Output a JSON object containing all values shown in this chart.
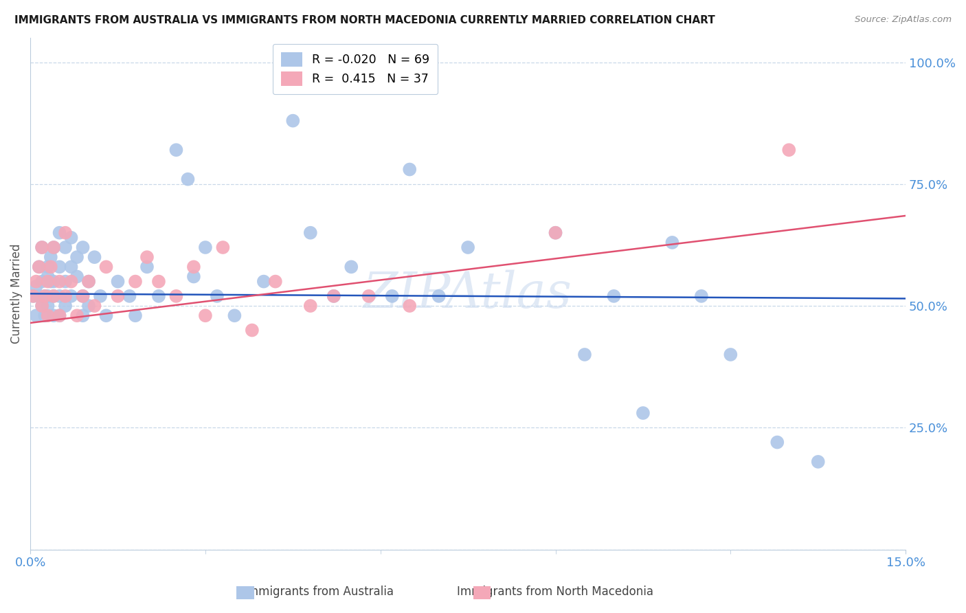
{
  "title": "IMMIGRANTS FROM AUSTRALIA VS IMMIGRANTS FROM NORTH MACEDONIA CURRENTLY MARRIED CORRELATION CHART",
  "source": "Source: ZipAtlas.com",
  "ylabel": "Currently Married",
  "xlabel_australia": "Immigrants from Australia",
  "xlabel_north_macedonia": "Immigrants from North Macedonia",
  "xlim": [
    0.0,
    0.15
  ],
  "ylim": [
    0.0,
    1.05
  ],
  "ytick_vals": [
    0.0,
    0.25,
    0.5,
    0.75,
    1.0
  ],
  "ytick_labels": [
    "",
    "25.0%",
    "50.0%",
    "75.0%",
    "100.0%"
  ],
  "xtick_vals": [
    0.0,
    0.15
  ],
  "xtick_labels": [
    "0.0%",
    "15.0%"
  ],
  "australia_R": -0.02,
  "australia_N": 69,
  "north_macedonia_R": 0.415,
  "north_macedonia_N": 37,
  "color_australia": "#adc6e8",
  "color_north_macedonia": "#f4a8b8",
  "color_australia_line": "#2255bb",
  "color_north_macedonia_line": "#e05070",
  "color_ticks": "#4a90d9",
  "background_color": "#ffffff",
  "grid_color": "#c8d8e8",
  "watermark_color": "#c8d8ee",
  "aus_line_y0": 0.525,
  "aus_line_y1": 0.515,
  "mac_line_y0": 0.465,
  "mac_line_y1": 0.685,
  "australia_x": [
    0.0005,
    0.001,
    0.001,
    0.0015,
    0.0015,
    0.002,
    0.002,
    0.002,
    0.0025,
    0.0025,
    0.003,
    0.003,
    0.003,
    0.003,
    0.0035,
    0.0035,
    0.004,
    0.004,
    0.004,
    0.004,
    0.005,
    0.005,
    0.005,
    0.005,
    0.006,
    0.006,
    0.006,
    0.007,
    0.007,
    0.007,
    0.008,
    0.008,
    0.009,
    0.009,
    0.009,
    0.01,
    0.01,
    0.011,
    0.012,
    0.013,
    0.015,
    0.017,
    0.018,
    0.02,
    0.022,
    0.025,
    0.027,
    0.028,
    0.03,
    0.032,
    0.035,
    0.04,
    0.045,
    0.048,
    0.052,
    0.055,
    0.062,
    0.065,
    0.07,
    0.075,
    0.09,
    0.095,
    0.1,
    0.105,
    0.11,
    0.115,
    0.12,
    0.128,
    0.135
  ],
  "australia_y": [
    0.52,
    0.54,
    0.48,
    0.58,
    0.52,
    0.55,
    0.5,
    0.62,
    0.52,
    0.48,
    0.56,
    0.5,
    0.58,
    0.52,
    0.6,
    0.55,
    0.52,
    0.48,
    0.62,
    0.55,
    0.58,
    0.52,
    0.65,
    0.48,
    0.62,
    0.55,
    0.5,
    0.64,
    0.58,
    0.52,
    0.56,
    0.6,
    0.52,
    0.48,
    0.62,
    0.55,
    0.5,
    0.6,
    0.52,
    0.48,
    0.55,
    0.52,
    0.48,
    0.58,
    0.52,
    0.82,
    0.76,
    0.56,
    0.62,
    0.52,
    0.48,
    0.55,
    0.88,
    0.65,
    0.52,
    0.58,
    0.52,
    0.78,
    0.52,
    0.62,
    0.65,
    0.4,
    0.52,
    0.28,
    0.63,
    0.52,
    0.4,
    0.22,
    0.18
  ],
  "north_macedonia_x": [
    0.0005,
    0.001,
    0.0015,
    0.002,
    0.002,
    0.0025,
    0.003,
    0.003,
    0.0035,
    0.004,
    0.004,
    0.005,
    0.005,
    0.006,
    0.006,
    0.007,
    0.008,
    0.009,
    0.01,
    0.011,
    0.013,
    0.015,
    0.018,
    0.02,
    0.022,
    0.025,
    0.028,
    0.03,
    0.033,
    0.038,
    0.042,
    0.048,
    0.052,
    0.058,
    0.065,
    0.09,
    0.13
  ],
  "north_macedonia_y": [
    0.52,
    0.55,
    0.58,
    0.5,
    0.62,
    0.52,
    0.55,
    0.48,
    0.58,
    0.52,
    0.62,
    0.48,
    0.55,
    0.52,
    0.65,
    0.55,
    0.48,
    0.52,
    0.55,
    0.5,
    0.58,
    0.52,
    0.55,
    0.6,
    0.55,
    0.52,
    0.58,
    0.48,
    0.62,
    0.45,
    0.55,
    0.5,
    0.52,
    0.52,
    0.5,
    0.65,
    0.82
  ]
}
